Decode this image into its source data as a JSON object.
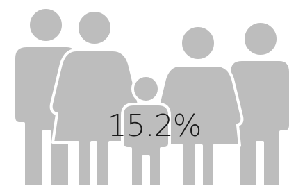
{
  "statistic": "15.2%"
}
